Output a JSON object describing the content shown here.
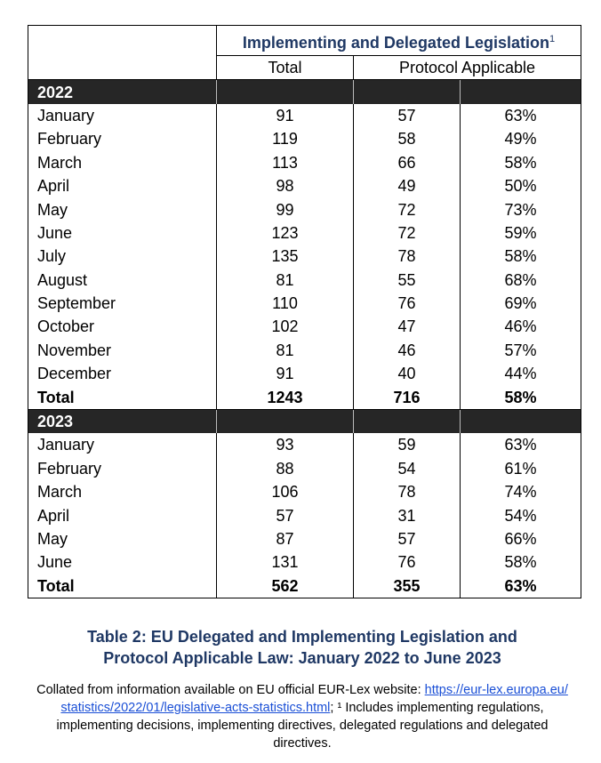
{
  "table": {
    "header": {
      "title": "Implementing and Delegated Legislation",
      "title_note": "1",
      "columns": [
        "Total",
        "Protocol Applicable"
      ]
    },
    "sections": [
      {
        "year": "2022",
        "rows": [
          [
            "January",
            "91",
            "57",
            "63%"
          ],
          [
            "February",
            "119",
            "58",
            "49%"
          ],
          [
            "March",
            "113",
            "66",
            "58%"
          ],
          [
            "April",
            "98",
            "49",
            "50%"
          ],
          [
            "May",
            "99",
            "72",
            "73%"
          ],
          [
            "June",
            "123",
            "72",
            "59%"
          ],
          [
            "July",
            "135",
            "78",
            "58%"
          ],
          [
            "August",
            "81",
            "55",
            "68%"
          ],
          [
            "September",
            "110",
            "76",
            "69%"
          ],
          [
            "October",
            "102",
            "47",
            "46%"
          ],
          [
            "November",
            "81",
            "46",
            "57%"
          ],
          [
            "December",
            "91",
            "40",
            "44%"
          ]
        ],
        "total": [
          "Total",
          "1243",
          "716",
          "58%"
        ]
      },
      {
        "year": "2023",
        "rows": [
          [
            "January",
            "93",
            "59",
            "63%"
          ],
          [
            "February",
            "88",
            "54",
            "61%"
          ],
          [
            "March",
            "106",
            "78",
            "74%"
          ],
          [
            "April",
            "57",
            "31",
            "54%"
          ],
          [
            "May",
            "87",
            "57",
            "66%"
          ],
          [
            "June",
            "131",
            "76",
            "58%"
          ]
        ],
        "total": [
          "Total",
          "562",
          "355",
          "63%"
        ]
      }
    ]
  },
  "caption": "Table 2: EU Delegated and Implementing Legislation and Protocol Applicable Law: January 2022 to June 2023",
  "note": {
    "before": "Collated from information available on EU official EUR-Lex website: ",
    "link": "https://eur-lex.europa.eu/statistics/2022/01/legislative-acts-statistics.html",
    "after": "; ¹ Includes implementing regulations, implementing decisions, implementing directives, delegated regulations and delegated directives."
  }
}
